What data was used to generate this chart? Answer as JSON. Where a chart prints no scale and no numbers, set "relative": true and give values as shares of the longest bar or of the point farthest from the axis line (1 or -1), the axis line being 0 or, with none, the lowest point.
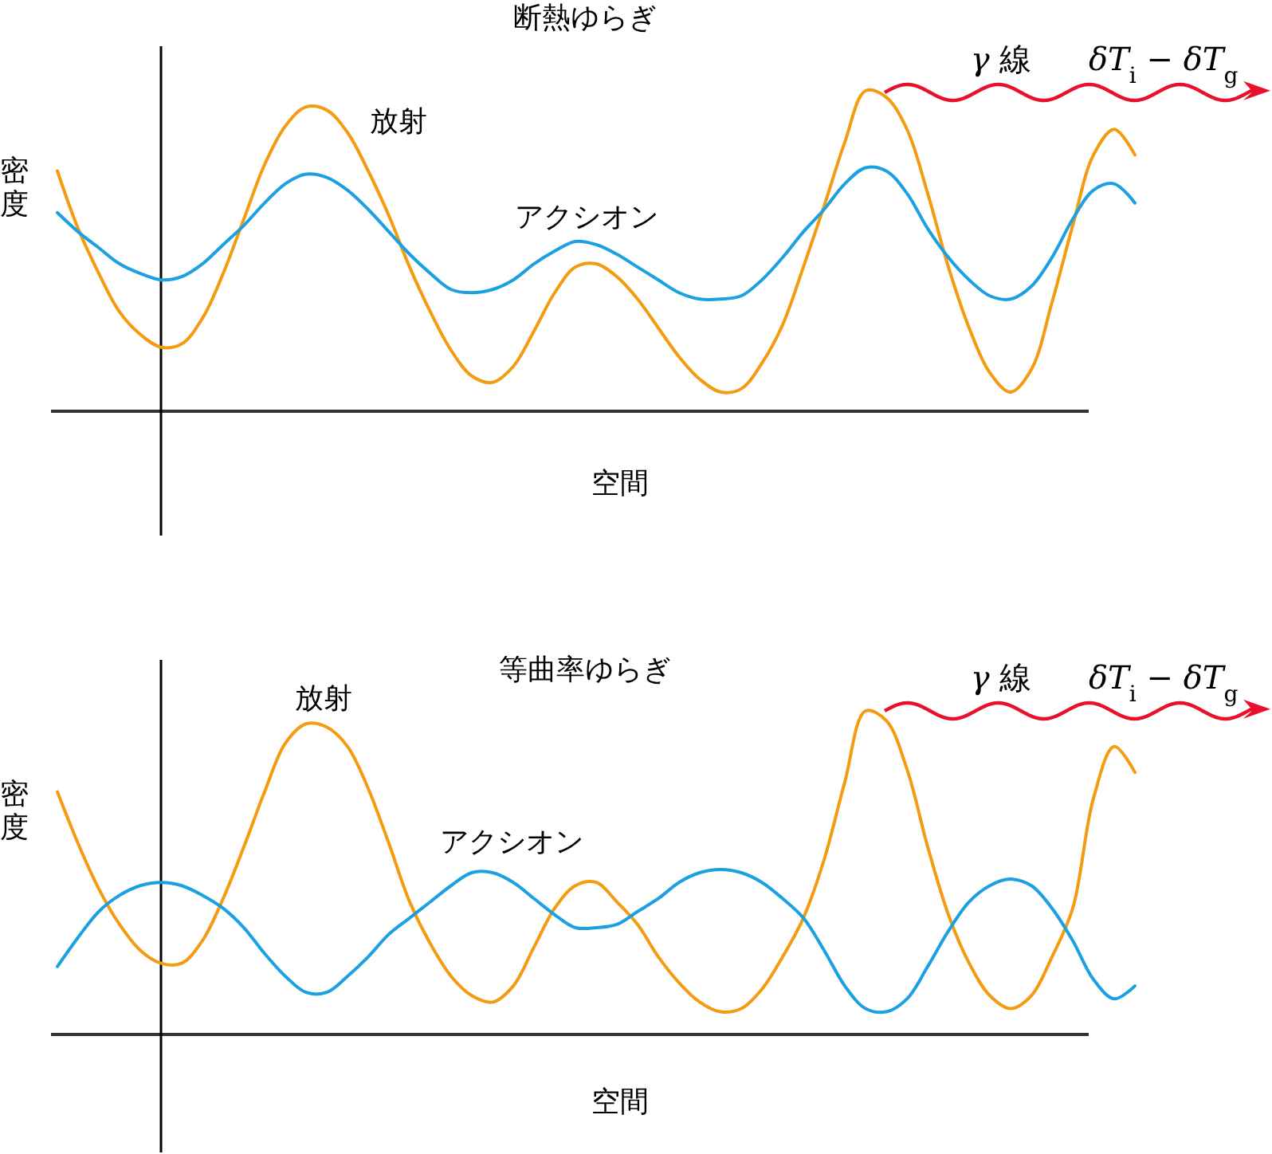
{
  "chart_data": [
    {
      "type": "line",
      "title": "断熱ゆらぎ",
      "xlabel": "空間",
      "ylabel": "密度",
      "relative": true,
      "categories": [
        null,
        null,
        null,
        null,
        null,
        null,
        null,
        null,
        null,
        null,
        null,
        null,
        null,
        null,
        null,
        null,
        null,
        null,
        null,
        null,
        null,
        null,
        null,
        null,
        null,
        null,
        null,
        null,
        null,
        null,
        null,
        null,
        null,
        null,
        null,
        null,
        null,
        null,
        null,
        null,
        null,
        null,
        null,
        null,
        null,
        null,
        null,
        null,
        null,
        null,
        null,
        null,
        null
      ],
      "series": [
        {
          "name": "放射",
          "color": "#f39c12",
          "values": [
            0.75,
            0.57,
            0.43,
            0.31,
            0.24,
            0.2,
            0.21,
            0.29,
            0.43,
            0.6,
            0.77,
            0.89,
            0.95,
            0.94,
            0.87,
            0.75,
            0.61,
            0.45,
            0.31,
            0.19,
            0.11,
            0.09,
            0.14,
            0.25,
            0.37,
            0.45,
            0.46,
            0.42,
            0.35,
            0.26,
            0.17,
            0.1,
            0.06,
            0.07,
            0.15,
            0.27,
            0.45,
            0.64,
            0.84,
            1,
            0.98,
            0.88,
            0.68,
            0.45,
            0.26,
            0.12,
            0.06,
            0.13,
            0.34,
            0.58,
            0.8,
            0.88,
            0.8
          ]
        },
        {
          "name": "アクシオン",
          "color": "#1ba1e2",
          "values": [
            0.62,
            0.56,
            0.51,
            0.46,
            0.43,
            0.41,
            0.42,
            0.46,
            0.52,
            0.58,
            0.65,
            0.71,
            0.74,
            0.73,
            0.69,
            0.63,
            0.56,
            0.49,
            0.43,
            0.38,
            0.37,
            0.38,
            0.41,
            0.46,
            0.5,
            0.53,
            0.52,
            0.49,
            0.45,
            0.41,
            0.37,
            0.35,
            0.35,
            0.36,
            0.41,
            0.48,
            0.56,
            0.63,
            0.71,
            0.76,
            0.75,
            0.68,
            0.57,
            0.48,
            0.41,
            0.36,
            0.35,
            0.39,
            0.48,
            0.6,
            0.69,
            0.71,
            0.65
          ]
        }
      ],
      "annotations": [
        "γ 線",
        "δT$_{i}$ − δT$_{g}$"
      ]
    },
    {
      "type": "line",
      "title": "等曲率ゆらぎ",
      "xlabel": "空間",
      "ylabel": "密度",
      "relative": true,
      "categories": [
        null,
        null,
        null,
        null,
        null,
        null,
        null,
        null,
        null,
        null,
        null,
        null,
        null,
        null,
        null,
        null,
        null,
        null,
        null,
        null,
        null,
        null,
        null,
        null,
        null,
        null,
        null,
        null,
        null,
        null,
        null,
        null,
        null,
        null,
        null,
        null,
        null,
        null,
        null,
        null,
        null,
        null,
        null,
        null,
        null,
        null,
        null,
        null,
        null,
        null,
        null,
        null,
        null
      ],
      "series": [
        {
          "name": "放射",
          "color": "#f39c12",
          "values": [
            0.75,
            0.59,
            0.45,
            0.34,
            0.26,
            0.22,
            0.22,
            0.29,
            0.42,
            0.58,
            0.75,
            0.9,
            0.96,
            0.95,
            0.89,
            0.76,
            0.59,
            0.41,
            0.28,
            0.18,
            0.12,
            0.1,
            0.15,
            0.27,
            0.39,
            0.46,
            0.47,
            0.41,
            0.34,
            0.24,
            0.16,
            0.1,
            0.07,
            0.08,
            0.14,
            0.24,
            0.36,
            0.54,
            0.78,
            1,
            0.97,
            0.82,
            0.58,
            0.37,
            0.22,
            0.12,
            0.08,
            0.12,
            0.24,
            0.39,
            0.73,
            0.89,
            0.81
          ]
        },
        {
          "name": "アクシオン",
          "color": "#1ba1e2",
          "values": [
            0.21,
            0.3,
            0.38,
            0.43,
            0.46,
            0.47,
            0.46,
            0.43,
            0.39,
            0.33,
            0.25,
            0.18,
            0.13,
            0.13,
            0.18,
            0.24,
            0.31,
            0.36,
            0.41,
            0.46,
            0.5,
            0.5,
            0.47,
            0.42,
            0.37,
            0.33,
            0.33,
            0.34,
            0.38,
            0.42,
            0.47,
            0.5,
            0.51,
            0.5,
            0.47,
            0.42,
            0.36,
            0.26,
            0.15,
            0.08,
            0.07,
            0.11,
            0.21,
            0.32,
            0.41,
            0.46,
            0.48,
            0.46,
            0.39,
            0.29,
            0.17,
            0.11,
            0.15
          ]
        }
      ],
      "annotations": [
        "γ 線",
        "δT$_{i}$ − δT$_{g}$"
      ]
    }
  ]
}
